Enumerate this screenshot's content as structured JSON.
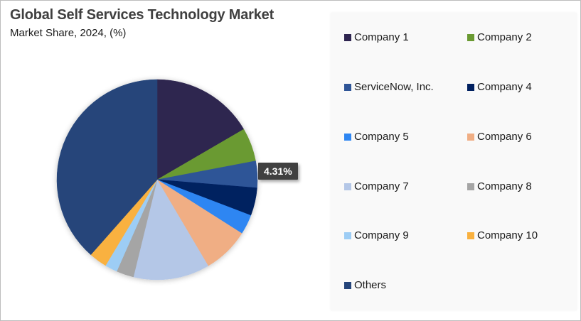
{
  "header": {
    "title": "Global Self Services Technology  Market",
    "subtitle": "Market Share, 2024, (%)"
  },
  "callout": {
    "label": "4.31%",
    "target": "ServiceNow, Inc."
  },
  "legend": {
    "items": [
      {
        "label": "Company 1",
        "color": "#2e2550"
      },
      {
        "label": "Company 2",
        "color": "#6a9a32"
      },
      {
        "label": "ServiceNow, Inc.",
        "color": "#2f5597"
      },
      {
        "label": "Company 4",
        "color": "#002060"
      },
      {
        "label": "Company 5",
        "color": "#2e86f2"
      },
      {
        "label": "Company 6",
        "color": "#f0ae84"
      },
      {
        "label": "Company 7",
        "color": "#b4c7e7"
      },
      {
        "label": "Company 8",
        "color": "#a5a5a5"
      },
      {
        "label": "Company 9",
        "color": "#9dcdf5"
      },
      {
        "label": "Company 10",
        "color": "#f9b13f"
      },
      {
        "label": "Others",
        "color": "#25457a"
      }
    ]
  },
  "chart_data": {
    "type": "pie",
    "title": "Global Self Services Technology Market",
    "subtitle": "Market Share, 2024, (%)",
    "categories": [
      "Company 1",
      "Company 2",
      "ServiceNow, Inc.",
      "Company 4",
      "Company 5",
      "Company 6",
      "Company 7",
      "Company 8",
      "Company 9",
      "Company 10",
      "Others"
    ],
    "values": [
      16.6,
      5.4,
      4.31,
      4.5,
      3.2,
      7.5,
      12.3,
      2.8,
      2.0,
      2.9,
      38.49
    ],
    "colors": [
      "#2e2550",
      "#6a9a32",
      "#2f5597",
      "#002060",
      "#2e86f2",
      "#f0ae84",
      "#b4c7e7",
      "#a5a5a5",
      "#9dcdf5",
      "#f9b13f",
      "#25457a"
    ],
    "data_labels": [
      {
        "category": "ServiceNow, Inc.",
        "text": "4.31%"
      }
    ],
    "start_angle_deg": 0,
    "direction": "clockwise",
    "legend_position": "right"
  }
}
